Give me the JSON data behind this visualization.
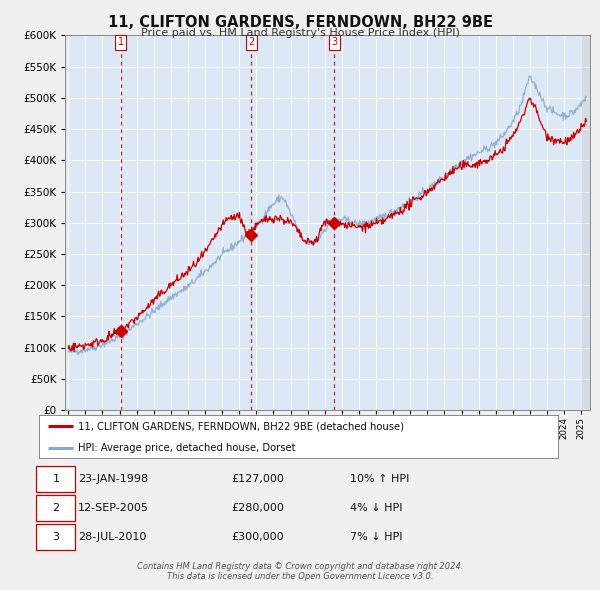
{
  "title": "11, CLIFTON GARDENS, FERNDOWN, BH22 9BE",
  "subtitle": "Price paid vs. HM Land Registry's House Price Index (HPI)",
  "fig_bg_color": "#f0f0f0",
  "plot_bg_color": "#dce8f5",
  "red_line_color": "#cc0000",
  "blue_line_color": "#88aacc",
  "grid_color": "#ffffff",
  "ylim": [
    0,
    600000
  ],
  "yticks": [
    0,
    50000,
    100000,
    150000,
    200000,
    250000,
    300000,
    350000,
    400000,
    450000,
    500000,
    550000,
    600000
  ],
  "xlim_start": 1994.8,
  "xlim_end": 2025.5,
  "transactions": [
    {
      "date_year": 1998.06,
      "price": 127000,
      "label": "1"
    },
    {
      "date_year": 2005.71,
      "price": 280000,
      "label": "2"
    },
    {
      "date_year": 2010.57,
      "price": 300000,
      "label": "3"
    }
  ],
  "vline_years": [
    1998.06,
    2005.71,
    2010.57
  ],
  "legend_red_label": "11, CLIFTON GARDENS, FERNDOWN, BH22 9BE (detached house)",
  "legend_blue_label": "HPI: Average price, detached house, Dorset",
  "table_rows": [
    {
      "num": "1",
      "date": "23-JAN-1998",
      "price": "£127,000",
      "hpi": "10% ↑ HPI"
    },
    {
      "num": "2",
      "date": "12-SEP-2005",
      "price": "£280,000",
      "hpi": "4% ↓ HPI"
    },
    {
      "num": "3",
      "date": "28-JUL-2010",
      "price": "£300,000",
      "hpi": "7% ↓ HPI"
    }
  ],
  "footer_line1": "Contains HM Land Registry data © Crown copyright and database right 2024.",
  "footer_line2": "This data is licensed under the Open Government Licence v3.0."
}
